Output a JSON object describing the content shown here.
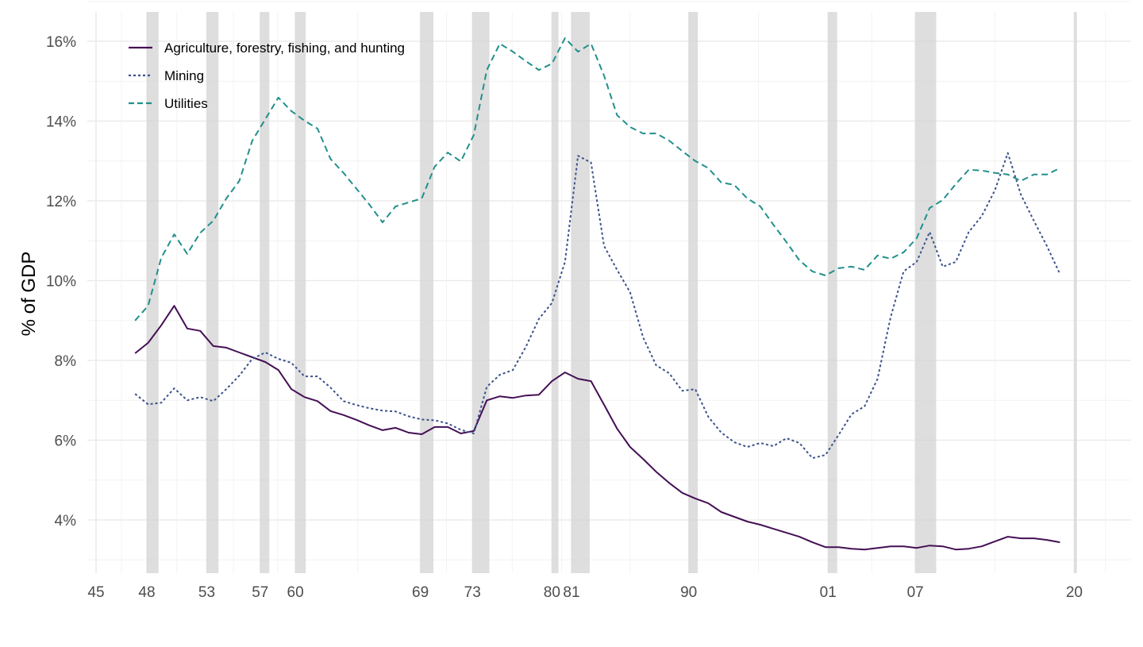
{
  "chart_data": {
    "type": "line",
    "title": "",
    "xlabel": "",
    "ylabel": "% of GDP",
    "xlim": [
      1945,
      2023
    ],
    "ylim": [
      2.7,
      16.7
    ],
    "grid": true,
    "legend_position": "top-left",
    "y_ticks": [
      4,
      6,
      8,
      10,
      12,
      14,
      16
    ],
    "y_tick_labels": [
      "4%",
      "6%",
      "8%",
      "10%",
      "12%",
      "14%",
      "16%"
    ],
    "x_ticks": [
      1945,
      1948.9,
      1953.5,
      1957.6,
      1960.3,
      1969.9,
      1973.9,
      1980.0,
      1981.5,
      1990.5,
      2001.2,
      2007.9,
      2020.1
    ],
    "x_tick_labels": [
      "45",
      "48",
      "53",
      "57",
      "60",
      "69",
      "73",
      "80",
      "81",
      "90",
      "01",
      "07",
      "20"
    ],
    "recessions": [
      [
        1948.9,
        1949.8
      ],
      [
        1953.5,
        1954.4
      ],
      [
        1957.6,
        1958.3
      ],
      [
        1960.3,
        1961.1
      ],
      [
        1969.9,
        1970.9
      ],
      [
        1973.9,
        1975.2
      ],
      [
        1980.0,
        1980.5
      ],
      [
        1981.5,
        1982.9
      ],
      [
        1990.5,
        1991.2
      ],
      [
        2001.2,
        2001.9
      ],
      [
        2007.9,
        2009.5
      ],
      [
        2020.1,
        2020.3
      ]
    ],
    "x_start": 1948,
    "series": [
      {
        "name": "Agriculture, forestry, fishing, and hunting",
        "color": "#440f55",
        "dash": "",
        "values": [
          8.18,
          8.44,
          8.88,
          9.37,
          8.8,
          8.74,
          8.36,
          8.32,
          8.2,
          8.08,
          7.96,
          7.76,
          7.28,
          7.08,
          6.98,
          6.73,
          6.63,
          6.51,
          6.37,
          6.25,
          6.31,
          6.19,
          6.15,
          6.33,
          6.33,
          6.17,
          6.23,
          7.0,
          7.1,
          7.06,
          7.12,
          7.14,
          7.48,
          7.7,
          7.54,
          7.48,
          6.89,
          6.29,
          5.83,
          5.53,
          5.21,
          4.93,
          4.68,
          4.54,
          4.42,
          4.2,
          4.08,
          3.96,
          3.88,
          3.78,
          3.68,
          3.58,
          3.44,
          3.32,
          3.32,
          3.28,
          3.26,
          3.3,
          3.34,
          3.34,
          3.3,
          3.36,
          3.34,
          3.26,
          3.28,
          3.34,
          3.46,
          3.58,
          3.54,
          3.54,
          3.5,
          3.44
        ]
      },
      {
        "name": "Mining",
        "color": "#3b528b",
        "dash": "3,3",
        "values": [
          7.16,
          6.9,
          6.94,
          7.3,
          7.0,
          7.08,
          6.98,
          7.28,
          7.62,
          8.04,
          8.2,
          8.04,
          7.94,
          7.6,
          7.6,
          7.32,
          6.98,
          6.88,
          6.8,
          6.74,
          6.72,
          6.6,
          6.52,
          6.5,
          6.42,
          6.26,
          6.17,
          7.34,
          7.64,
          7.76,
          8.34,
          9.04,
          9.44,
          10.47,
          13.13,
          12.96,
          10.87,
          10.27,
          9.71,
          8.58,
          7.88,
          7.68,
          7.24,
          7.28,
          6.59,
          6.19,
          5.95,
          5.83,
          5.93,
          5.85,
          6.05,
          5.93,
          5.55,
          5.63,
          6.13,
          6.65,
          6.85,
          7.54,
          9.08,
          10.23,
          10.47,
          11.22,
          10.35,
          10.47,
          11.22,
          11.62,
          12.26,
          13.2,
          12.16,
          11.5,
          10.87,
          10.17
        ]
      },
      {
        "name": "Utilities",
        "color": "#21908c",
        "dash": "8,5",
        "values": [
          9.0,
          9.37,
          10.57,
          11.16,
          10.67,
          11.2,
          11.5,
          12.06,
          12.5,
          13.51,
          14.05,
          14.59,
          14.25,
          14.01,
          13.81,
          13.05,
          12.7,
          12.3,
          11.9,
          11.46,
          11.86,
          11.96,
          12.06,
          12.86,
          13.21,
          12.99,
          13.65,
          15.28,
          15.94,
          15.74,
          15.5,
          15.28,
          15.44,
          16.08,
          15.74,
          15.94,
          15.14,
          14.15,
          13.85,
          13.69,
          13.69,
          13.51,
          13.25,
          13.0,
          12.82,
          12.46,
          12.4,
          12.06,
          11.86,
          11.4,
          10.97,
          10.51,
          10.23,
          10.13,
          10.31,
          10.35,
          10.27,
          10.63,
          10.55,
          10.71,
          11.06,
          11.82,
          12.02,
          12.42,
          12.78,
          12.76,
          12.7,
          12.66,
          12.5,
          12.66,
          12.66,
          12.82
        ]
      }
    ]
  }
}
